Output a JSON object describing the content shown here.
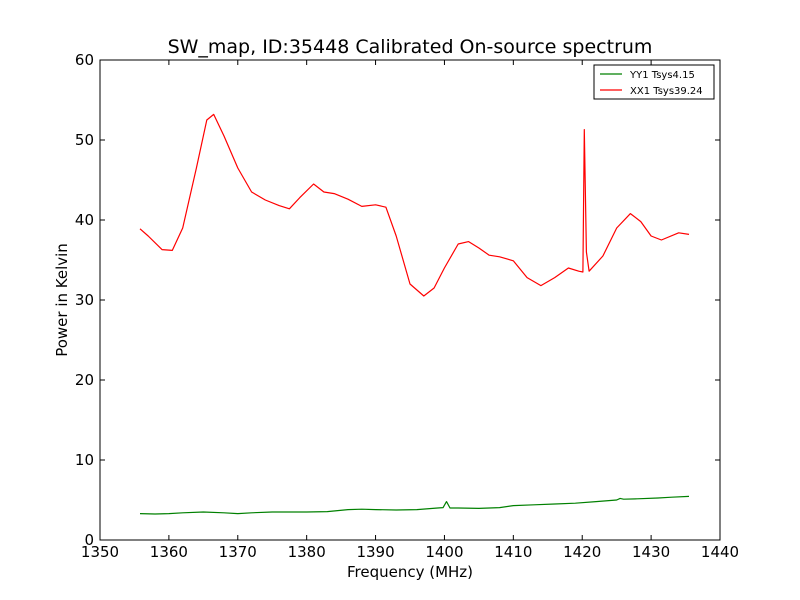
{
  "chart_data": {
    "type": "line",
    "title": "SW_map, ID:35448 Calibrated On-source spectrum",
    "xlabel": "Frequency (MHz)",
    "ylabel": "Power in Kelvin",
    "xlim": [
      1350,
      1440
    ],
    "ylim": [
      0,
      60
    ],
    "xticks": [
      1350,
      1360,
      1370,
      1380,
      1390,
      1400,
      1410,
      1420,
      1430,
      1440
    ],
    "yticks": [
      0,
      10,
      20,
      30,
      40,
      50,
      60
    ],
    "grid": false,
    "legend_position": "top-right",
    "series": [
      {
        "name": "YY1 Tsys4.15",
        "color": "#008000",
        "x": [
          1355.8,
          1358,
          1360,
          1362,
          1365,
          1368,
          1370,
          1372,
          1375,
          1377,
          1380,
          1383,
          1386,
          1388,
          1390,
          1393,
          1396,
          1399,
          1399.8,
          1400.3,
          1400.8,
          1402,
          1405,
          1408,
          1410,
          1413,
          1416,
          1419,
          1422,
          1425,
          1425.5,
          1426,
          1428,
          1431,
          1433,
          1435.5
        ],
        "values": [
          3.3,
          3.25,
          3.3,
          3.4,
          3.5,
          3.4,
          3.3,
          3.4,
          3.5,
          3.5,
          3.5,
          3.55,
          3.8,
          3.85,
          3.8,
          3.75,
          3.8,
          4.0,
          4.05,
          4.8,
          4.0,
          4.0,
          3.95,
          4.05,
          4.3,
          4.4,
          4.5,
          4.6,
          4.8,
          5.0,
          5.2,
          5.1,
          5.15,
          5.25,
          5.35,
          5.45
        ]
      },
      {
        "name": "XX1 Tsys39.24",
        "color": "#ff0000",
        "x": [
          1355.8,
          1357,
          1359,
          1360.5,
          1362,
          1364,
          1365.5,
          1366.5,
          1368,
          1370,
          1372,
          1374,
          1376,
          1377.5,
          1379,
          1381,
          1382.5,
          1384,
          1386,
          1388,
          1390,
          1391.5,
          1393,
          1395,
          1397,
          1398.5,
          1400,
          1402,
          1403.5,
          1405,
          1406.5,
          1408,
          1410,
          1412,
          1414,
          1416,
          1418,
          1419.5,
          1420.1,
          1420.3,
          1420.6,
          1421,
          1423,
          1425,
          1427,
          1428.5,
          1430,
          1431.5,
          1434,
          1435.5
        ],
        "values": [
          38.9,
          38.0,
          36.3,
          36.2,
          39.0,
          46.5,
          52.5,
          53.2,
          50.5,
          46.5,
          43.5,
          42.5,
          41.8,
          41.4,
          42.8,
          44.5,
          43.5,
          43.3,
          42.6,
          41.7,
          41.9,
          41.6,
          38.0,
          32.0,
          30.5,
          31.5,
          34.0,
          37.0,
          37.3,
          36.5,
          35.6,
          35.4,
          34.9,
          32.8,
          31.8,
          32.8,
          34.0,
          33.6,
          33.5,
          51.3,
          36.0,
          33.6,
          35.5,
          39.0,
          40.8,
          39.8,
          38.0,
          37.5,
          38.4,
          38.2
        ]
      }
    ]
  }
}
